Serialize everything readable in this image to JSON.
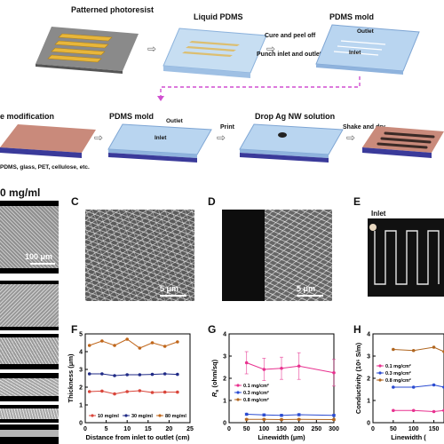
{
  "schematic": {
    "row1": [
      {
        "key": "photoresist",
        "label": "Patterned photoresist"
      },
      {
        "key": "liquid_pdms",
        "label": "Liquid PDMS"
      },
      {
        "key": "pdms_mold",
        "label": "PDMS mold"
      }
    ],
    "row1_arrow_texts": [
      "Cure and peel off",
      "Punch inlet and outlet"
    ],
    "mold_ports": {
      "outlet": "Outlet",
      "inlet": "Inlet"
    },
    "row2": [
      {
        "key": "surface_mod",
        "label": "e modification"
      },
      {
        "key": "pdms_mold2",
        "label": "PDMS mold"
      },
      {
        "key": "drop",
        "label": "Drop Ag NW solution"
      }
    ],
    "print_label": "Print",
    "shake_label": "Shake and dry",
    "substrates_note": "PDMS, glass, PET, cellulose, etc."
  },
  "panels": {
    "left_header": "0 mg/ml",
    "left_scale": "100 μm",
    "C": "C",
    "D": "D",
    "E": "E",
    "F": "F",
    "G": "G",
    "H": "H",
    "scale_C": "5 μm",
    "scale_D": "5 μm",
    "E_inlet": "Inlet"
  },
  "charts": {
    "F": {
      "ylabel": "Thickness (μm)",
      "xlabel": "Distance from inlet to outlet (cm)",
      "x_ticks": [
        "0",
        "5",
        "10",
        "15",
        "20",
        "25"
      ],
      "y_ticks": [
        "0",
        "1",
        "2",
        "3",
        "4",
        "5"
      ],
      "legend": [
        "10 mg/ml",
        "30 mg/ml",
        "80 mg/ml"
      ]
    },
    "G": {
      "ylabel_main": "R",
      "ylabel_sub": "s",
      "ylabel_rest": " (ohm/sq)",
      "xlabel": "Linewidth (μm)",
      "x_ticks": [
        "0",
        "50",
        "100",
        "150",
        "200",
        "250",
        "300"
      ],
      "y_ticks": [
        "0",
        "1",
        "2",
        "3",
        "4"
      ],
      "legend": [
        "0.1 mg/cm²",
        "0.3 mg/cm²",
        "0.8 mg/cm²"
      ]
    },
    "H": {
      "ylabel": "Conductivity (10⁶ S/m)",
      "xlabel": "Linewidth (",
      "x_ticks": [
        "0",
        "50",
        "100",
        "150"
      ],
      "y_ticks": [
        "0",
        "1",
        "2",
        "3",
        "4"
      ],
      "legend": [
        "0.1 mg/cm²",
        "0.3 mg/cm²",
        "0.8 mg/cm²"
      ]
    }
  },
  "colors": {
    "red": "#d9453a",
    "navy": "#1f2a86",
    "orange": "#c0661a",
    "pink": "#e8318f",
    "blue": "#2a4bd1",
    "brown": "#b06620",
    "mold": "#a9cbeb",
    "mold_dark": "#5c8fc6",
    "substrate": "#3a3a9a",
    "pink_surface": "#c78879",
    "photoresist": "#e8b63a"
  },
  "chart_data": [
    {
      "type": "line",
      "title": "",
      "xlabel": "Distance from inlet to outlet (cm)",
      "ylabel": "Thickness (μm)",
      "xlim": [
        0,
        25
      ],
      "ylim": [
        0,
        5
      ],
      "x": [
        1,
        4,
        7,
        10,
        13,
        16,
        19,
        22
      ],
      "series": [
        {
          "name": "10 mg/ml",
          "color": "#d9453a",
          "values": [
            1.75,
            1.78,
            1.62,
            1.75,
            1.8,
            1.7,
            1.72,
            1.72
          ]
        },
        {
          "name": "30 mg/ml",
          "color": "#1f2a86",
          "values": [
            2.75,
            2.75,
            2.65,
            2.7,
            2.7,
            2.72,
            2.75,
            2.72
          ]
        },
        {
          "name": "80 mg/ml",
          "color": "#c0661a",
          "values": [
            4.35,
            4.6,
            4.35,
            4.7,
            4.2,
            4.5,
            4.3,
            4.55
          ]
        }
      ]
    },
    {
      "type": "line",
      "title": "",
      "xlabel": "Linewidth (μm)",
      "ylabel": "Rs (ohm/sq)",
      "xlim": [
        0,
        300
      ],
      "ylim": [
        0,
        4
      ],
      "x": [
        50,
        100,
        150,
        200,
        300
      ],
      "series": [
        {
          "name": "0.1 mg/cm²",
          "color": "#e8318f",
          "values": [
            2.7,
            2.4,
            2.45,
            2.55,
            2.25
          ],
          "err": [
            0.5,
            0.5,
            0.5,
            0.6,
            0.6
          ]
        },
        {
          "name": "0.3 mg/cm²",
          "color": "#2a4bd1",
          "values": [
            0.38,
            0.35,
            0.33,
            0.36,
            0.33
          ],
          "err": [
            0.05,
            0.05,
            0.05,
            0.05,
            0.05
          ]
        },
        {
          "name": "0.8 mg/cm²",
          "color": "#b06620",
          "values": [
            0.15,
            0.15,
            0.14,
            0.15,
            0.14
          ],
          "err": [
            0.03,
            0.03,
            0.03,
            0.03,
            0.03
          ]
        }
      ]
    },
    {
      "type": "line",
      "title": "",
      "xlabel": "Linewidth (μm)",
      "ylabel": "Conductivity (10⁶ S/m)",
      "xlim": [
        0,
        175
      ],
      "ylim": [
        0,
        4
      ],
      "x": [
        50,
        100,
        150,
        175
      ],
      "series": [
        {
          "name": "0.1 mg/cm²",
          "color": "#e8318f",
          "values": [
            0.55,
            0.55,
            0.5,
            0.55
          ]
        },
        {
          "name": "0.3 mg/cm²",
          "color": "#2a4bd1",
          "values": [
            1.6,
            1.6,
            1.7,
            1.6
          ]
        },
        {
          "name": "0.8 mg/cm²",
          "color": "#b06620",
          "values": [
            3.3,
            3.25,
            3.4,
            3.2
          ]
        }
      ]
    }
  ]
}
